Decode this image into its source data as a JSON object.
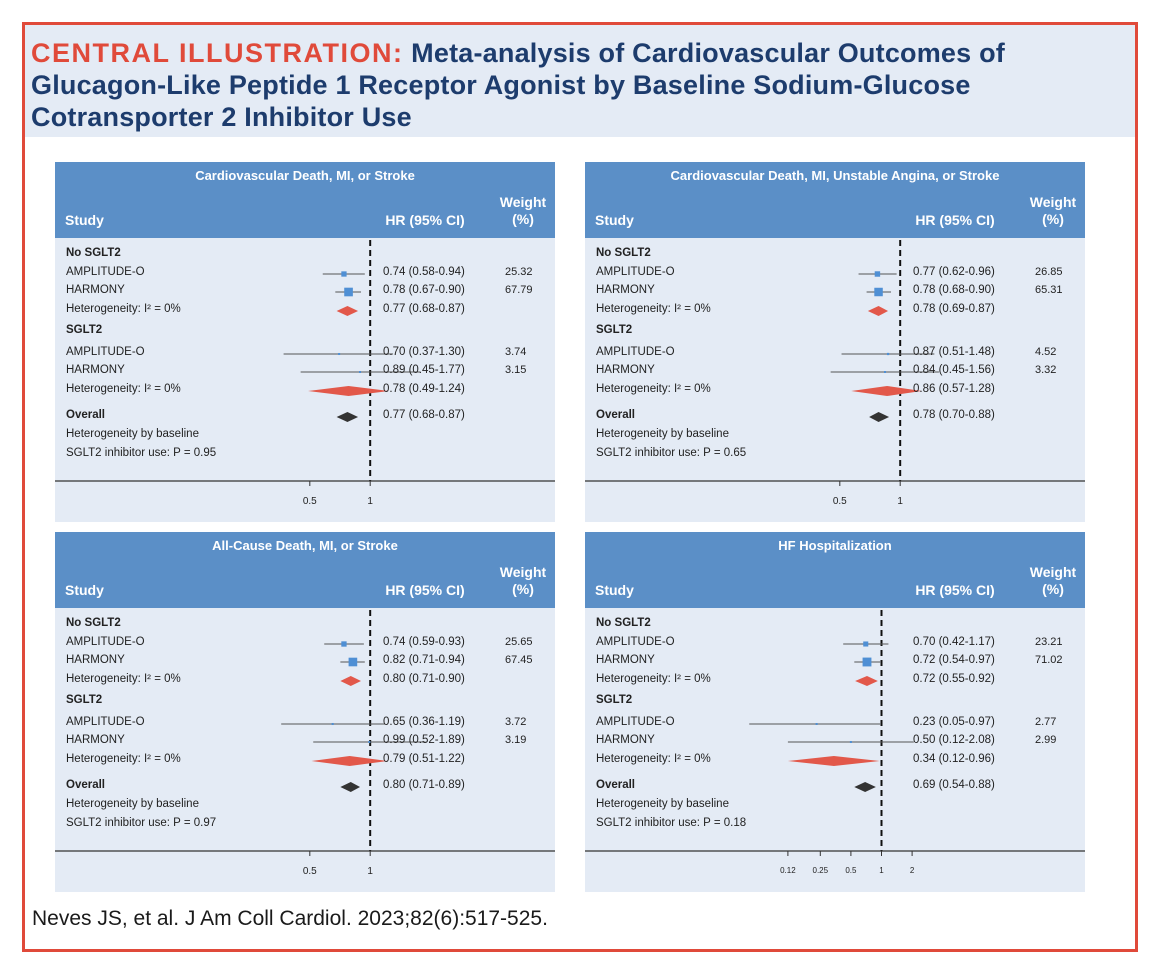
{
  "header": {
    "label": "CENTRAL ILLUSTRATION:",
    "title": "Meta-analysis of Cardiovascular Outcomes of Glucagon-Like Peptide 1 Receptor Agonist by Baseline Sodium-Glucose Cotransporter 2 Inhibitor Use"
  },
  "citation": "Neves JS, et al. J Am Coll Cardiol. 2023;82(6):517-525.",
  "colors": {
    "frame": "#e04a3a",
    "header_bg": "#e4ebf5",
    "panel_bg": "#e4ebf5",
    "panel_header": "#5b8fc7",
    "study_marker": "#4f8fd4",
    "pooled_diamond": "#e2584a",
    "overall_diamond": "#333333"
  },
  "columns": {
    "study": "Study",
    "hr": "HR (95% CI)",
    "weight": "Weight (%)"
  },
  "chart_data": [
    {
      "type": "forest",
      "title": "Cardiovascular Death, MI, or Stroke",
      "x_scale": "log",
      "x_ticks": [
        0.5,
        1
      ],
      "x_tick_labels": [
        "0.5",
        "1"
      ],
      "reference_line": 1,
      "rows": [
        {
          "label": "No SGLT2",
          "kind": "group"
        },
        {
          "label": "AMPLITUDE-O",
          "kind": "study",
          "hr": 0.74,
          "lo": 0.58,
          "hi": 0.94,
          "text": "0.74 (0.58-0.94)",
          "weight": "25.32"
        },
        {
          "label": "HARMONY",
          "kind": "study",
          "hr": 0.78,
          "lo": 0.67,
          "hi": 0.9,
          "text": "0.78 (0.67-0.90)",
          "weight": "67.79"
        },
        {
          "label": "Heterogeneity: I² = 0%",
          "kind": "pooled",
          "hr": 0.77,
          "lo": 0.68,
          "hi": 0.87,
          "text": "0.77 (0.68-0.87)"
        },
        {
          "label": "SGLT2",
          "kind": "group"
        },
        {
          "label": "AMPLITUDE-O",
          "kind": "study",
          "hr": 0.7,
          "lo": 0.37,
          "hi": 1.3,
          "text": "0.70 (0.37-1.30)",
          "weight": "3.74"
        },
        {
          "label": "HARMONY",
          "kind": "study",
          "hr": 0.89,
          "lo": 0.45,
          "hi": 1.77,
          "text": "0.89 (0.45-1.77)",
          "weight": "3.15"
        },
        {
          "label": "Heterogeneity: I² = 0%",
          "kind": "pooled",
          "hr": 0.78,
          "lo": 0.49,
          "hi": 1.24,
          "text": "0.78 (0.49-1.24)"
        },
        {
          "label": "Overall",
          "kind": "overall",
          "hr": 0.77,
          "lo": 0.68,
          "hi": 0.87,
          "text": "0.77 (0.68-0.87)"
        },
        {
          "label": "Heterogeneity by baseline",
          "kind": "note"
        },
        {
          "label": "SGLT2 inhibitor use: P = 0.95",
          "kind": "note"
        }
      ]
    },
    {
      "type": "forest",
      "title": "Cardiovascular Death, MI, Unstable Angina, or Stroke",
      "x_scale": "log",
      "x_ticks": [
        0.5,
        1
      ],
      "x_tick_labels": [
        "0.5",
        "1"
      ],
      "reference_line": 1,
      "rows": [
        {
          "label": "No SGLT2",
          "kind": "group"
        },
        {
          "label": "AMPLITUDE-O",
          "kind": "study",
          "hr": 0.77,
          "lo": 0.62,
          "hi": 0.96,
          "text": "0.77 (0.62-0.96)",
          "weight": "26.85"
        },
        {
          "label": "HARMONY",
          "kind": "study",
          "hr": 0.78,
          "lo": 0.68,
          "hi": 0.9,
          "text": "0.78 (0.68-0.90)",
          "weight": "65.31"
        },
        {
          "label": "Heterogeneity: I² = 0%",
          "kind": "pooled",
          "hr": 0.78,
          "lo": 0.69,
          "hi": 0.87,
          "text": "0.78 (0.69-0.87)"
        },
        {
          "label": "SGLT2",
          "kind": "group"
        },
        {
          "label": "AMPLITUDE-O",
          "kind": "study",
          "hr": 0.87,
          "lo": 0.51,
          "hi": 1.48,
          "text": "0.87 (0.51-1.48)",
          "weight": "4.52"
        },
        {
          "label": "HARMONY",
          "kind": "study",
          "hr": 0.84,
          "lo": 0.45,
          "hi": 1.56,
          "text": "0.84 (0.45-1.56)",
          "weight": "3.32"
        },
        {
          "label": "Heterogeneity: I² = 0%",
          "kind": "pooled",
          "hr": 0.86,
          "lo": 0.57,
          "hi": 1.28,
          "text": "0.86 (0.57-1.28)"
        },
        {
          "label": "Overall",
          "kind": "overall",
          "hr": 0.78,
          "lo": 0.7,
          "hi": 0.88,
          "text": "0.78 (0.70-0.88)"
        },
        {
          "label": "Heterogeneity by baseline",
          "kind": "note"
        },
        {
          "label": "SGLT2 inhibitor use: P = 0.65",
          "kind": "note"
        }
      ]
    },
    {
      "type": "forest",
      "title": "All-Cause Death, MI, or Stroke",
      "x_scale": "log",
      "x_ticks": [
        0.5,
        1
      ],
      "x_tick_labels": [
        "0.5",
        "1"
      ],
      "reference_line": 1,
      "rows": [
        {
          "label": "No SGLT2",
          "kind": "group"
        },
        {
          "label": "AMPLITUDE-O",
          "kind": "study",
          "hr": 0.74,
          "lo": 0.59,
          "hi": 0.93,
          "text": "0.74 (0.59-0.93)",
          "weight": "25.65"
        },
        {
          "label": "HARMONY",
          "kind": "study",
          "hr": 0.82,
          "lo": 0.71,
          "hi": 0.94,
          "text": "0.82 (0.71-0.94)",
          "weight": "67.45"
        },
        {
          "label": "Heterogeneity: I² = 0%",
          "kind": "pooled",
          "hr": 0.8,
          "lo": 0.71,
          "hi": 0.9,
          "text": "0.80 (0.71-0.90)"
        },
        {
          "label": "SGLT2",
          "kind": "group"
        },
        {
          "label": "AMPLITUDE-O",
          "kind": "study",
          "hr": 0.65,
          "lo": 0.36,
          "hi": 1.19,
          "text": "0.65 (0.36-1.19)",
          "weight": "3.72"
        },
        {
          "label": "HARMONY",
          "kind": "study",
          "hr": 0.99,
          "lo": 0.52,
          "hi": 1.89,
          "text": "0.99 (0.52-1.89)",
          "weight": "3.19"
        },
        {
          "label": "Heterogeneity: I² = 0%",
          "kind": "pooled",
          "hr": 0.79,
          "lo": 0.51,
          "hi": 1.22,
          "text": "0.79 (0.51-1.22)"
        },
        {
          "label": "Overall",
          "kind": "overall",
          "hr": 0.8,
          "lo": 0.71,
          "hi": 0.89,
          "text": "0.80 (0.71-0.89)"
        },
        {
          "label": "Heterogeneity by baseline",
          "kind": "note"
        },
        {
          "label": "SGLT2 inhibitor use: P = 0.97",
          "kind": "note"
        }
      ]
    },
    {
      "type": "forest",
      "title": "HF Hospitalization",
      "x_scale": "log",
      "x_ticks": [
        0.12,
        0.25,
        0.5,
        1,
        2
      ],
      "x_tick_labels": [
        "0.12",
        "0.25",
        "0.5",
        "1",
        "2"
      ],
      "reference_line": 1,
      "rows": [
        {
          "label": "No SGLT2",
          "kind": "group"
        },
        {
          "label": "AMPLITUDE-O",
          "kind": "study",
          "hr": 0.7,
          "lo": 0.42,
          "hi": 1.17,
          "text": "0.70 (0.42-1.17)",
          "weight": "23.21"
        },
        {
          "label": "HARMONY",
          "kind": "study",
          "hr": 0.72,
          "lo": 0.54,
          "hi": 0.97,
          "text": "0.72 (0.54-0.97)",
          "weight": "71.02"
        },
        {
          "label": "Heterogeneity: I² = 0%",
          "kind": "pooled",
          "hr": 0.72,
          "lo": 0.55,
          "hi": 0.92,
          "text": "0.72 (0.55-0.92)"
        },
        {
          "label": "SGLT2",
          "kind": "group"
        },
        {
          "label": "AMPLITUDE-O",
          "kind": "study",
          "hr": 0.23,
          "lo": 0.05,
          "hi": 0.97,
          "text": "0.23 (0.05-0.97)",
          "weight": "2.77"
        },
        {
          "label": "HARMONY",
          "kind": "study",
          "hr": 0.5,
          "lo": 0.12,
          "hi": 2.08,
          "text": "0.50 (0.12-2.08)",
          "weight": "2.99"
        },
        {
          "label": "Heterogeneity: I² = 0%",
          "kind": "pooled",
          "hr": 0.34,
          "lo": 0.12,
          "hi": 0.96,
          "text": "0.34 (0.12-0.96)"
        },
        {
          "label": "Overall",
          "kind": "overall",
          "hr": 0.69,
          "lo": 0.54,
          "hi": 0.88,
          "text": "0.69 (0.54-0.88)"
        },
        {
          "label": "Heterogeneity by baseline",
          "kind": "note"
        },
        {
          "label": "SGLT2 inhibitor use: P = 0.18",
          "kind": "note"
        }
      ]
    }
  ]
}
